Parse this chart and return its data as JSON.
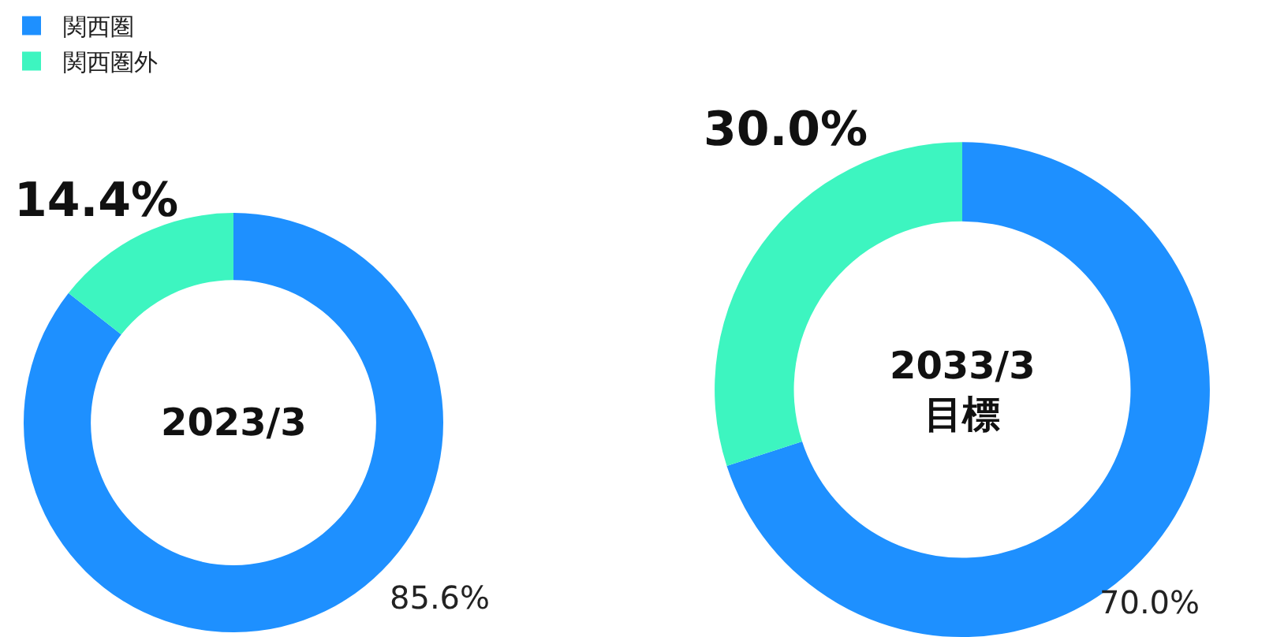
{
  "chart_data": [
    {
      "type": "donut",
      "categories": [
        "関西圏",
        "関西圏外"
      ],
      "values": [
        85.6,
        14.4
      ],
      "colors": [
        "#1e90ff",
        "#3df5c0"
      ],
      "value_labels": [
        "85.6%",
        "14.4%"
      ],
      "annotations": [
        "2023/3"
      ],
      "legend": "top left"
    },
    {
      "type": "donut",
      "categories": [
        null,
        null
      ],
      "values": [
        70.0,
        30.0
      ],
      "colors": [
        "#1e90ff",
        "#3df5c0"
      ],
      "value_labels": [
        "70.0%",
        "30.0%"
      ],
      "annotations": [
        "2033/3\n目標"
      ]
    }
  ]
}
